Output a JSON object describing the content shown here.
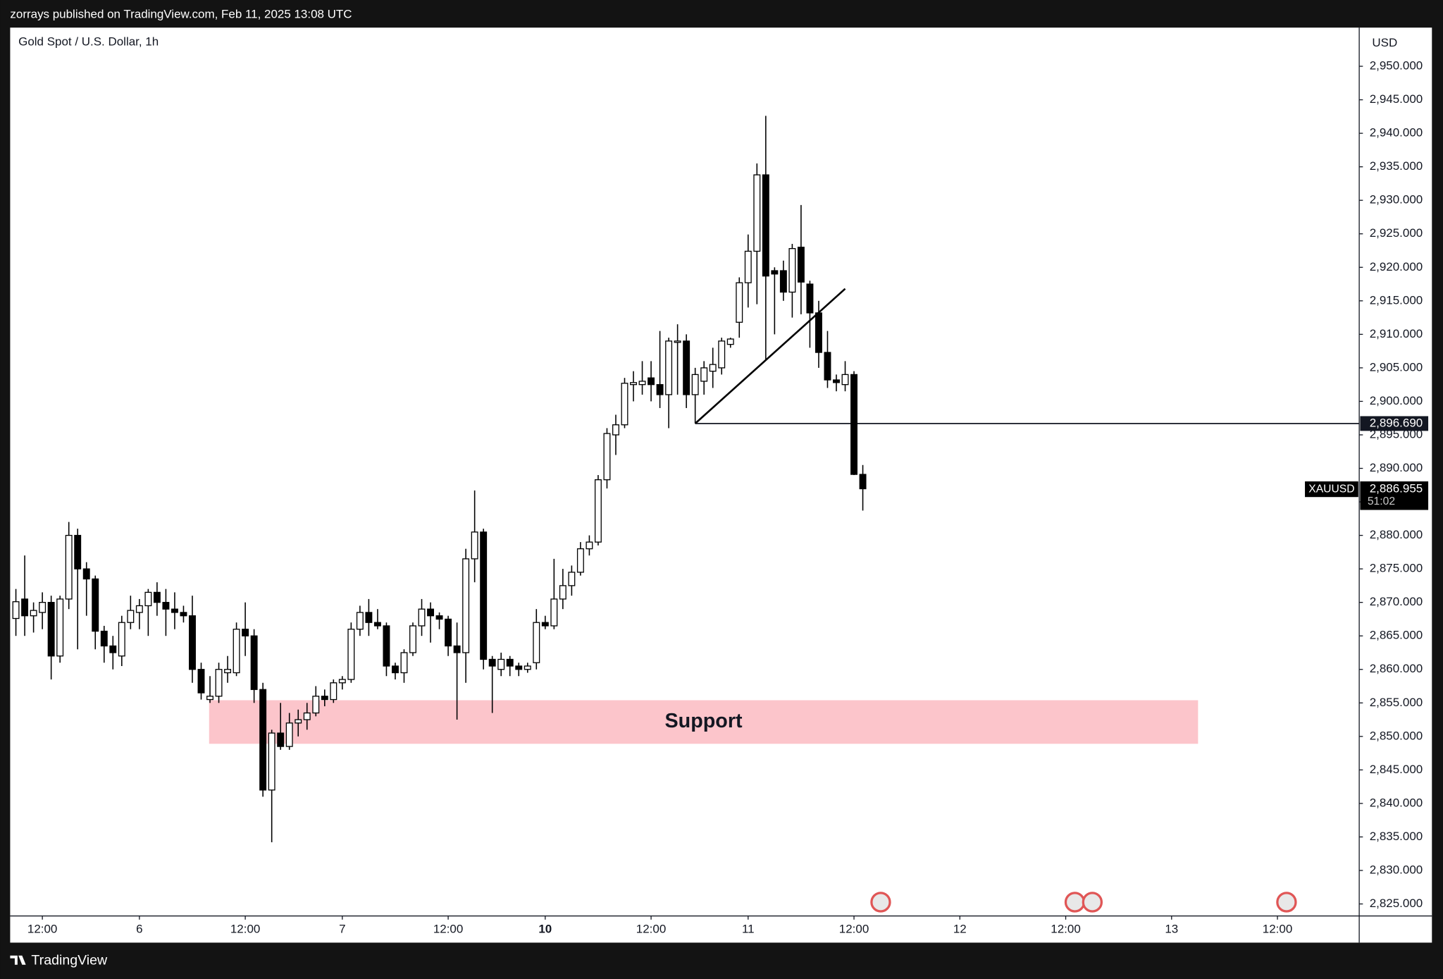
{
  "header": "zorrays published on TradingView.com, Feb 11, 2025 13:08 UTC",
  "footer": "TradingView",
  "chart_data": {
    "type": "candlestick",
    "title": "Gold Spot / U.S. Dollar, 1h",
    "currency": "USD",
    "up_color": "#ffffff",
    "down_color": "#000000",
    "x": [
      -3,
      -2,
      -1,
      0,
      1,
      2,
      3,
      4,
      5,
      6,
      7,
      8,
      9,
      10,
      11,
      12,
      13,
      14,
      15,
      16,
      17,
      18,
      19,
      20,
      21,
      22,
      23,
      24,
      25,
      26,
      27,
      28,
      29,
      30,
      31,
      32,
      33,
      34,
      35,
      36,
      37,
      38,
      39,
      40,
      41,
      42,
      43,
      44,
      45,
      46,
      47,
      48,
      49,
      50,
      51,
      52,
      53,
      54,
      55,
      56,
      57,
      58,
      59,
      60,
      61,
      62,
      63,
      64,
      65,
      66,
      67,
      68,
      69,
      70,
      71,
      72,
      73,
      74,
      75,
      76,
      77,
      78,
      79,
      80,
      81,
      82,
      83,
      84,
      85,
      86,
      87,
      88,
      89,
      90,
      91,
      92,
      93
    ],
    "open": [
      2867.6,
      2870.5,
      2868,
      2868.5,
      2870,
      2862,
      2870.5,
      2880,
      2875,
      2873.5,
      2865.7,
      2863.5,
      2862,
      2867,
      2868.5,
      2869.5,
      2871.5,
      2870,
      2869,
      2868.5,
      2868,
      2860,
      2855.5,
      2856,
      2859.5,
      2859.5,
      2866,
      2865,
      2857,
      2842,
      2850.5,
      2848.5,
      2852,
      2852.5,
      2853.5,
      2856,
      2855.5,
      2858,
      2858.5,
      2866,
      2868.5,
      2867,
      2866.5,
      2860.5,
      2859.5,
      2862.5,
      2866.5,
      2869,
      2868,
      2867.5,
      2863.5,
      2862.5,
      2876.5,
      2880.5,
      2861.5,
      2860,
      2861.5,
      2860.5,
      2860,
      2861,
      2867,
      2866.5,
      2870.5,
      2872.5,
      2874.5,
      2878,
      2879,
      2888.3,
      2895,
      2896.5,
      2902.5,
      2902.5,
      2903.5,
      2902.5,
      2901,
      2908.8,
      2909,
      2901,
      2903,
      2904.5,
      2905,
      2908.5,
      2911.8,
      2917.7,
      2922.4,
      2933.8,
      2919.5,
      2919.5,
      2916.3,
      2923,
      2917.5,
      2913.2,
      2907.3,
      2903.2,
      2902.5,
      2904,
      2889.1
    ],
    "high": [
      2872,
      2877,
      2870,
      2871.5,
      2871,
      2871,
      2882,
      2881,
      2876,
      2874,
      2866.5,
      2865,
      2868,
      2871,
      2870.5,
      2872,
      2873,
      2872,
      2871.5,
      2869.5,
      2871,
      2861,
      2859,
      2861,
      2862,
      2867,
      2870,
      2866,
      2858,
      2851,
      2855,
      2853.5,
      2854,
      2855,
      2857.5,
      2857,
      2858.5,
      2859,
      2867,
      2869.5,
      2870.5,
      2869,
      2867,
      2861,
      2863,
      2867,
      2870.5,
      2870,
      2868.5,
      2868,
      2867,
      2878,
      2886.7,
      2881,
      2862,
      2862.5,
      2862,
      2861,
      2861,
      2869,
      2868,
      2876.5,
      2875,
      2875.5,
      2879,
      2880,
      2889,
      2896,
      2898,
      2903.5,
      2904.5,
      2906,
      2906,
      2910.5,
      2909.5,
      2911.5,
      2910,
      2905,
      2906,
      2908,
      2909.5,
      2909.5,
      2918.5,
      2924.9,
      2935.5,
      2942.6,
      2920,
      2921,
      2923.5,
      2929.3,
      2918,
      2915,
      2910.5,
      2904,
      2906,
      2904.5,
      2890.5
    ],
    "low": [
      2865,
      2865,
      2865.5,
      2866,
      2858.5,
      2861,
      2869,
      2863,
      2868,
      2863,
      2861,
      2860,
      2860.5,
      2866,
      2866,
      2865,
      2868,
      2865,
      2866,
      2867,
      2858,
      2855.5,
      2855,
      2855,
      2858,
      2859,
      2862,
      2855,
      2841,
      2834.2,
      2848,
      2848,
      2850,
      2851,
      2853,
      2854.5,
      2855,
      2857,
      2858,
      2865,
      2865,
      2866,
      2859,
      2858.5,
      2858,
      2862,
      2865,
      2864,
      2866,
      2862,
      2852.5,
      2858,
      2873,
      2860,
      2853.5,
      2859,
      2859,
      2859,
      2859.5,
      2860,
      2866,
      2866,
      2869,
      2871,
      2874,
      2877,
      2878.5,
      2887,
      2892,
      2896,
      2900,
      2901,
      2900,
      2899,
      2896,
      2901,
      2899,
      2896.7,
      2901,
      2902,
      2904,
      2908,
      2909.5,
      2914,
      2914.5,
      2906.2,
      2910,
      2915,
      2912.5,
      2913,
      2908,
      2905,
      2902,
      2901.5,
      2901.5,
      2889,
      2883.7
    ],
    "close": [
      2870.1,
      2868,
      2868.8,
      2870,
      2862,
      2870.5,
      2880,
      2875,
      2873.5,
      2865.7,
      2863.5,
      2862.5,
      2867,
      2868.8,
      2869.5,
      2871.5,
      2870,
      2869,
      2868.5,
      2868,
      2860,
      2856.5,
      2856,
      2860,
      2860,
      2866,
      2865,
      2857,
      2842,
      2850.5,
      2848.5,
      2852,
      2852.5,
      2853.5,
      2856,
      2855.5,
      2858,
      2858.5,
      2866,
      2868.5,
      2867,
      2866.5,
      2860.5,
      2859.5,
      2862.5,
      2866.5,
      2869,
      2868,
      2867.5,
      2863.5,
      2862.5,
      2876.5,
      2880.5,
      2861.5,
      2860.5,
      2861.5,
      2860.5,
      2860,
      2860.5,
      2867,
      2866.5,
      2870.5,
      2872.5,
      2874.5,
      2878,
      2879,
      2888.3,
      2895.2,
      2896.5,
      2902.7,
      2902.8,
      2903,
      2902.5,
      2901,
      2909,
      2909,
      2901,
      2904,
      2905,
      2905.5,
      2909,
      2909.3,
      2917.7,
      2922.4,
      2933.8,
      2918.7,
      2919,
      2916.3,
      2922.8,
      2917.8,
      2913.2,
      2907.3,
      2903.2,
      2902.8,
      2904,
      2889.1,
      2886.955
    ],
    "xlim": [
      -3.651,
      149.27
    ],
    "xticks": [
      {
        "value": 0,
        "label": "12:00"
      },
      {
        "value": 11,
        "label": "6"
      },
      {
        "value": 23,
        "label": "12:00"
      },
      {
        "value": 34,
        "label": "7"
      },
      {
        "value": 46,
        "label": "12:00"
      },
      {
        "value": 57,
        "label": "10",
        "bold": true
      },
      {
        "value": 69,
        "label": "12:00"
      },
      {
        "value": 80,
        "label": "11"
      },
      {
        "value": 92,
        "label": "12:00"
      },
      {
        "value": 104,
        "label": "12"
      },
      {
        "value": 116,
        "label": "12:00"
      },
      {
        "value": 128,
        "label": "13"
      },
      {
        "value": 140,
        "label": "12:00"
      }
    ],
    "ylim": [
      2823.21,
      2955.77
    ],
    "yticks": [
      {
        "value": 2950,
        "label": "2,950.000"
      },
      {
        "value": 2945,
        "label": "2,945.000"
      },
      {
        "value": 2940,
        "label": "2,940.000"
      },
      {
        "value": 2935,
        "label": "2,935.000"
      },
      {
        "value": 2930,
        "label": "2,930.000"
      },
      {
        "value": 2925,
        "label": "2,925.000"
      },
      {
        "value": 2920,
        "label": "2,920.000"
      },
      {
        "value": 2915,
        "label": "2,915.000"
      },
      {
        "value": 2910,
        "label": "2,910.000"
      },
      {
        "value": 2905,
        "label": "2,905.000"
      },
      {
        "value": 2900,
        "label": "2,900.000"
      },
      {
        "value": 2895,
        "label": "2,895.000"
      },
      {
        "value": 2890,
        "label": "2,890.000"
      },
      {
        "value": 2885,
        "label": "2,885.000"
      },
      {
        "value": 2880,
        "label": "2,880.000"
      },
      {
        "value": 2875,
        "label": "2,875.000"
      },
      {
        "value": 2870,
        "label": "2,870.000"
      },
      {
        "value": 2865,
        "label": "2,865.000"
      },
      {
        "value": 2860,
        "label": "2,860.000"
      },
      {
        "value": 2855,
        "label": "2,855.000"
      },
      {
        "value": 2850,
        "label": "2,850.000"
      },
      {
        "value": 2845,
        "label": "2,845.000"
      },
      {
        "value": 2840,
        "label": "2,840.000"
      },
      {
        "value": 2835,
        "label": "2,835.000"
      },
      {
        "value": 2830,
        "label": "2,830.000"
      },
      {
        "value": 2825,
        "label": "2,825.000"
      }
    ],
    "trendline": {
      "x": [
        74,
        91
      ],
      "y": [
        2896.69,
        2916.8
      ]
    },
    "hline": {
      "x": 74,
      "value": 2896.69,
      "label": "2,896.690"
    },
    "zone": {
      "label": "Support",
      "x": [
        18.9,
        131
      ],
      "y": [
        2848.9,
        2855.4
      ],
      "color": "#fcc5cb"
    },
    "price_badge": {
      "symbol": "XAUUSD",
      "label": "2,886.955",
      "countdown": "51:02"
    }
  }
}
